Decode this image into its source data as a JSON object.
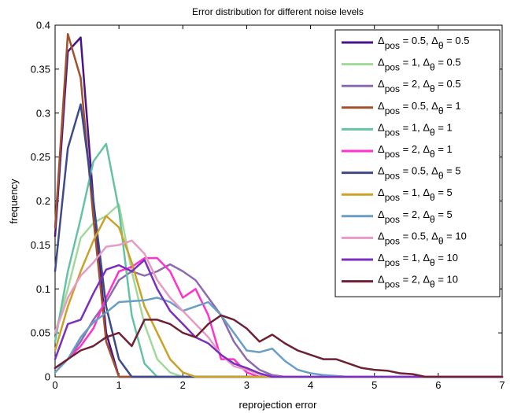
{
  "chart_data": {
    "type": "line",
    "title": "Error distribution for different noise levels",
    "xlabel": "reprojection error",
    "ylabel": "frequency",
    "xlim": [
      0,
      7
    ],
    "ylim": [
      0,
      0.4
    ],
    "xticks": [
      0,
      1,
      2,
      3,
      4,
      5,
      6,
      7
    ],
    "yticks": [
      0,
      0.05,
      0.1,
      0.15,
      0.2,
      0.25,
      0.3,
      0.35,
      0.4
    ],
    "xtick_labels": [
      "0",
      "1",
      "2",
      "3",
      "4",
      "5",
      "6",
      "7"
    ],
    "ytick_labels": [
      "0",
      "0.05",
      "0.1",
      "0.15",
      "0.2",
      "0.25",
      "0.3",
      "0.35",
      "0.4"
    ],
    "grid": false,
    "legend_position": "top-right",
    "x_extent": [
      0,
      7
    ],
    "series": [
      {
        "pos": "0.5",
        "theta": "0.5",
        "color": "#4a1486",
        "points": [
          [
            0,
            0.16
          ],
          [
            0.2,
            0.37
          ],
          [
            0.4,
            0.386
          ],
          [
            0.6,
            0.2
          ],
          [
            0.8,
            0.05
          ],
          [
            1.0,
            0.0
          ],
          [
            7,
            0
          ]
        ]
      },
      {
        "pos": "1",
        "theta": "0.5",
        "color": "#a1d99b",
        "points": [
          [
            0,
            0.05
          ],
          [
            0.2,
            0.1
          ],
          [
            0.4,
            0.158
          ],
          [
            0.6,
            0.175
          ],
          [
            0.8,
            0.183
          ],
          [
            1.0,
            0.196
          ],
          [
            1.2,
            0.12
          ],
          [
            1.4,
            0.06
          ],
          [
            1.6,
            0.02
          ],
          [
            1.8,
            0.005
          ],
          [
            2.0,
            0.0
          ],
          [
            7,
            0
          ]
        ]
      },
      {
        "pos": "2",
        "theta": "0.5",
        "color": "#8c6bb1",
        "points": [
          [
            0,
            0.01
          ],
          [
            0.2,
            0.02
          ],
          [
            0.4,
            0.04
          ],
          [
            0.6,
            0.065
          ],
          [
            0.8,
            0.085
          ],
          [
            1.0,
            0.11
          ],
          [
            1.2,
            0.12
          ],
          [
            1.4,
            0.115
          ],
          [
            1.6,
            0.12
          ],
          [
            1.8,
            0.128
          ],
          [
            2.0,
            0.12
          ],
          [
            2.2,
            0.11
          ],
          [
            2.4,
            0.09
          ],
          [
            2.6,
            0.07
          ],
          [
            2.8,
            0.04
          ],
          [
            3.0,
            0.02
          ],
          [
            3.2,
            0.008
          ],
          [
            3.4,
            0.002
          ],
          [
            3.6,
            0.0
          ],
          [
            7,
            0
          ]
        ]
      },
      {
        "pos": "0.5",
        "theta": "1",
        "color": "#a0522d",
        "points": [
          [
            0,
            0.17
          ],
          [
            0.2,
            0.39
          ],
          [
            0.4,
            0.34
          ],
          [
            0.6,
            0.18
          ],
          [
            0.8,
            0.04
          ],
          [
            1.0,
            0.0
          ],
          [
            7,
            0
          ]
        ]
      },
      {
        "pos": "1",
        "theta": "1",
        "color": "#66c2a4",
        "points": [
          [
            0,
            0.04
          ],
          [
            0.2,
            0.12
          ],
          [
            0.4,
            0.18
          ],
          [
            0.6,
            0.245
          ],
          [
            0.8,
            0.265
          ],
          [
            1.0,
            0.19
          ],
          [
            1.2,
            0.07
          ],
          [
            1.4,
            0.015
          ],
          [
            1.6,
            0.0
          ],
          [
            7,
            0
          ]
        ]
      },
      {
        "pos": "2",
        "theta": "1",
        "color": "#ff33cc",
        "points": [
          [
            0,
            0.01
          ],
          [
            0.2,
            0.02
          ],
          [
            0.4,
            0.035
          ],
          [
            0.6,
            0.055
          ],
          [
            0.8,
            0.09
          ],
          [
            1.0,
            0.12
          ],
          [
            1.2,
            0.125
          ],
          [
            1.4,
            0.135
          ],
          [
            1.6,
            0.135
          ],
          [
            1.8,
            0.12
          ],
          [
            2.0,
            0.09
          ],
          [
            2.2,
            0.1
          ],
          [
            2.4,
            0.07
          ],
          [
            2.6,
            0.02
          ],
          [
            2.8,
            0.02
          ],
          [
            3.0,
            0.005
          ],
          [
            3.2,
            0.0
          ],
          [
            7,
            0
          ]
        ]
      },
      {
        "pos": "0.5",
        "theta": "5",
        "color": "#3f4a8a",
        "points": [
          [
            0,
            0.12
          ],
          [
            0.2,
            0.26
          ],
          [
            0.4,
            0.31
          ],
          [
            0.6,
            0.2
          ],
          [
            0.8,
            0.08
          ],
          [
            1.0,
            0.02
          ],
          [
            1.2,
            0.0
          ],
          [
            7,
            0
          ]
        ]
      },
      {
        "pos": "1",
        "theta": "5",
        "color": "#c9a227",
        "points": [
          [
            0,
            0.03
          ],
          [
            0.2,
            0.08
          ],
          [
            0.4,
            0.12
          ],
          [
            0.6,
            0.155
          ],
          [
            0.8,
            0.183
          ],
          [
            1.0,
            0.17
          ],
          [
            1.2,
            0.13
          ],
          [
            1.4,
            0.08
          ],
          [
            1.6,
            0.05
          ],
          [
            1.8,
            0.02
          ],
          [
            2.0,
            0.005
          ],
          [
            2.2,
            0.0
          ],
          [
            7,
            0
          ]
        ]
      },
      {
        "pos": "2",
        "theta": "5",
        "color": "#6a9ec4",
        "points": [
          [
            0,
            0.005
          ],
          [
            0.2,
            0.02
          ],
          [
            0.4,
            0.045
          ],
          [
            0.6,
            0.062
          ],
          [
            0.8,
            0.073
          ],
          [
            1.0,
            0.085
          ],
          [
            1.2,
            0.086
          ],
          [
            1.4,
            0.087
          ],
          [
            1.6,
            0.09
          ],
          [
            1.8,
            0.085
          ],
          [
            2.0,
            0.075
          ],
          [
            2.2,
            0.08
          ],
          [
            2.4,
            0.085
          ],
          [
            2.6,
            0.07
          ],
          [
            2.8,
            0.05
          ],
          [
            3.0,
            0.03
          ],
          [
            3.2,
            0.028
          ],
          [
            3.4,
            0.032
          ],
          [
            3.6,
            0.018
          ],
          [
            3.8,
            0.008
          ],
          [
            4.0,
            0.004
          ],
          [
            4.2,
            0.002
          ],
          [
            4.4,
            0.001
          ],
          [
            4.6,
            0.0
          ],
          [
            7,
            0
          ]
        ]
      },
      {
        "pos": "0.5",
        "theta": "10",
        "color": "#e79ac4",
        "points": [
          [
            0,
            0.05
          ],
          [
            0.2,
            0.09
          ],
          [
            0.4,
            0.115
          ],
          [
            0.6,
            0.13
          ],
          [
            0.8,
            0.148
          ],
          [
            1.0,
            0.15
          ],
          [
            1.2,
            0.155
          ],
          [
            1.4,
            0.14
          ],
          [
            1.6,
            0.11
          ],
          [
            1.8,
            0.09
          ],
          [
            2.0,
            0.075
          ],
          [
            2.2,
            0.06
          ],
          [
            2.4,
            0.045
          ],
          [
            2.6,
            0.025
          ],
          [
            2.8,
            0.012
          ],
          [
            3.0,
            0.008
          ],
          [
            3.2,
            0.003
          ],
          [
            3.4,
            0.0
          ],
          [
            7,
            0
          ]
        ]
      },
      {
        "pos": "1",
        "theta": "10",
        "color": "#7b2fbe",
        "points": [
          [
            0,
            0.02
          ],
          [
            0.2,
            0.06
          ],
          [
            0.4,
            0.065
          ],
          [
            0.6,
            0.095
          ],
          [
            0.8,
            0.122
          ],
          [
            1.0,
            0.127
          ],
          [
            1.2,
            0.12
          ],
          [
            1.4,
            0.133
          ],
          [
            1.6,
            0.1
          ],
          [
            1.8,
            0.075
          ],
          [
            2.0,
            0.06
          ],
          [
            2.2,
            0.045
          ],
          [
            2.4,
            0.038
          ],
          [
            2.6,
            0.025
          ],
          [
            2.8,
            0.015
          ],
          [
            3.0,
            0.01
          ],
          [
            3.2,
            0.004
          ],
          [
            3.4,
            0.0
          ],
          [
            7,
            0
          ]
        ]
      },
      {
        "pos": "2",
        "theta": "10",
        "color": "#6e2035",
        "points": [
          [
            0,
            0.01
          ],
          [
            0.2,
            0.02
          ],
          [
            0.4,
            0.03
          ],
          [
            0.6,
            0.035
          ],
          [
            0.8,
            0.045
          ],
          [
            1.0,
            0.05
          ],
          [
            1.2,
            0.035
          ],
          [
            1.4,
            0.065
          ],
          [
            1.6,
            0.065
          ],
          [
            1.8,
            0.06
          ],
          [
            2.0,
            0.05
          ],
          [
            2.2,
            0.045
          ],
          [
            2.4,
            0.06
          ],
          [
            2.6,
            0.07
          ],
          [
            2.8,
            0.065
          ],
          [
            3.0,
            0.055
          ],
          [
            3.2,
            0.04
          ],
          [
            3.4,
            0.048
          ],
          [
            3.6,
            0.038
          ],
          [
            3.8,
            0.03
          ],
          [
            4.0,
            0.025
          ],
          [
            4.2,
            0.02
          ],
          [
            4.4,
            0.02
          ],
          [
            4.6,
            0.015
          ],
          [
            4.8,
            0.01
          ],
          [
            5.0,
            0.008
          ],
          [
            5.2,
            0.007
          ],
          [
            5.4,
            0.004
          ],
          [
            5.6,
            0.003
          ],
          [
            5.8,
            0.0
          ],
          [
            7,
            0
          ]
        ]
      }
    ]
  }
}
